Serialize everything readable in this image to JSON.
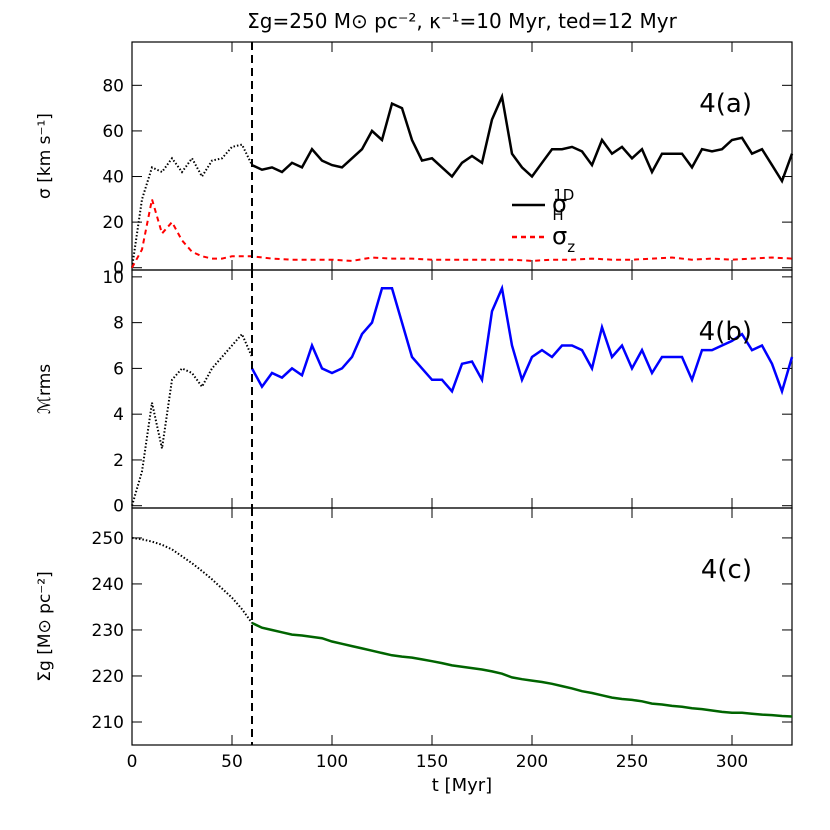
{
  "chart_data": [
    {
      "type": "line",
      "title": "Σg=250 M⊙ pc⁻², κ⁻¹=10 Myr, ted=12 Myr",
      "ylabel": "σ [km s⁻¹]",
      "annotation": "4(a)",
      "xlim": [
        0,
        330
      ],
      "ylim": [
        -1,
        99
      ],
      "yticks": [
        0,
        20,
        40,
        60,
        80
      ],
      "vline": 60,
      "series": [
        {
          "color": "#000000",
          "style": "dotted",
          "x": [
            0,
            5,
            10,
            15,
            20,
            25,
            30,
            35,
            40,
            45,
            50,
            55,
            60
          ],
          "values": [
            0,
            30,
            44,
            42,
            48,
            42,
            48,
            40,
            47,
            48,
            53,
            54,
            45
          ]
        },
        {
          "name": "σ",
          "name_sub": "H",
          "name_sup": "1D",
          "color": "#000000",
          "style": "solid",
          "x": [
            60,
            65,
            70,
            75,
            80,
            85,
            90,
            95,
            100,
            105,
            110,
            115,
            120,
            125,
            130,
            135,
            140,
            145,
            150,
            155,
            160,
            165,
            170,
            175,
            180,
            185,
            190,
            195,
            200,
            205,
            210,
            215,
            220,
            225,
            230,
            235,
            240,
            245,
            250,
            255,
            260,
            265,
            270,
            275,
            280,
            285,
            290,
            295,
            300,
            305,
            310,
            315,
            320,
            325,
            330
          ],
          "values": [
            45,
            43,
            44,
            42,
            46,
            44,
            52,
            47,
            45,
            44,
            48,
            52,
            60,
            56,
            72,
            70,
            56,
            47,
            48,
            44,
            40,
            46,
            49,
            46,
            65,
            75,
            50,
            44,
            40,
            46,
            52,
            52,
            53,
            51,
            45,
            56,
            50,
            53,
            48,
            52,
            42,
            50,
            50,
            50,
            44,
            52,
            51,
            52,
            56,
            57,
            50,
            52,
            45,
            38,
            50
          ]
        },
        {
          "name": "σ",
          "name_sub": "z",
          "color": "#ff0000",
          "style": "dashed",
          "x": [
            0,
            5,
            10,
            15,
            20,
            25,
            30,
            35,
            40,
            45,
            50,
            55,
            60,
            70,
            80,
            90,
            100,
            110,
            120,
            130,
            140,
            150,
            160,
            170,
            180,
            190,
            200,
            210,
            220,
            230,
            240,
            250,
            260,
            270,
            280,
            290,
            300,
            310,
            320,
            330
          ],
          "values": [
            0,
            8,
            30,
            15,
            20,
            12,
            7,
            5,
            4,
            4,
            5,
            5,
            5,
            4,
            3.5,
            3.5,
            3.5,
            3,
            4.5,
            4,
            4,
            3.5,
            3.5,
            3.5,
            3.5,
            3.5,
            3,
            3.5,
            3.5,
            4,
            3.5,
            3.5,
            4,
            4.5,
            3.5,
            4,
            3.5,
            4,
            4.5,
            4
          ]
        }
      ]
    },
    {
      "type": "line",
      "ylabel": "ℳrms",
      "annotation": "4(b)",
      "xlim": [
        0,
        330
      ],
      "ylim": [
        -0.1,
        10.3
      ],
      "yticks": [
        0,
        2,
        4,
        6,
        8,
        10
      ],
      "vline": 60,
      "series": [
        {
          "color": "#000000",
          "style": "dotted",
          "x": [
            0,
            5,
            10,
            15,
            20,
            25,
            30,
            35,
            40,
            45,
            50,
            55,
            60
          ],
          "values": [
            0,
            1.5,
            4.5,
            2.5,
            5.5,
            6,
            5.8,
            5.2,
            6,
            6.5,
            7,
            7.5,
            6.5
          ]
        },
        {
          "color": "#0000ff",
          "style": "solid",
          "x": [
            60,
            65,
            70,
            75,
            80,
            85,
            90,
            95,
            100,
            105,
            110,
            115,
            120,
            125,
            130,
            135,
            140,
            145,
            150,
            155,
            160,
            165,
            170,
            175,
            180,
            185,
            190,
            195,
            200,
            205,
            210,
            215,
            220,
            225,
            230,
            235,
            240,
            245,
            250,
            255,
            260,
            265,
            270,
            275,
            280,
            285,
            290,
            295,
            300,
            305,
            310,
            315,
            320,
            325,
            330
          ],
          "values": [
            6,
            5.2,
            5.8,
            5.6,
            6,
            5.7,
            7,
            6,
            5.8,
            6,
            6.5,
            7.5,
            8,
            9.5,
            9.5,
            8,
            6.5,
            6,
            5.5,
            5.5,
            5,
            6.2,
            6.3,
            5.5,
            8.5,
            9.5,
            7,
            5.5,
            6.5,
            6.8,
            6.5,
            7,
            7,
            6.8,
            6,
            7.8,
            6.5,
            7,
            6,
            6.8,
            5.8,
            6.5,
            6.5,
            6.5,
            5.5,
            6.8,
            6.8,
            7,
            7.2,
            7.5,
            6.8,
            7,
            6.2,
            5,
            6.5
          ]
        }
      ]
    },
    {
      "type": "line",
      "ylabel": "Σg [M⊙ pc⁻²]",
      "xlabel": "t [Myr]",
      "annotation": "4(c)",
      "xlim": [
        0,
        330
      ],
      "xticks": [
        0,
        50,
        100,
        150,
        200,
        250,
        300
      ],
      "ylim": [
        205,
        256.5
      ],
      "yticks": [
        210,
        220,
        230,
        240,
        250
      ],
      "vline": 60,
      "series": [
        {
          "color": "#000000",
          "style": "dotted",
          "x": [
            0,
            5,
            10,
            15,
            20,
            25,
            30,
            35,
            40,
            45,
            50,
            55,
            60
          ],
          "values": [
            250,
            249.7,
            249.2,
            248.5,
            247.5,
            246,
            244.5,
            242.8,
            241,
            239,
            237,
            234.5,
            231.5
          ]
        },
        {
          "color": "#006400",
          "style": "solid",
          "x": [
            60,
            65,
            70,
            75,
            80,
            85,
            90,
            95,
            100,
            105,
            110,
            115,
            120,
            125,
            130,
            135,
            140,
            145,
            150,
            155,
            160,
            165,
            170,
            175,
            180,
            185,
            190,
            195,
            200,
            205,
            210,
            215,
            220,
            225,
            230,
            235,
            240,
            245,
            250,
            255,
            260,
            265,
            270,
            275,
            280,
            285,
            290,
            295,
            300,
            305,
            310,
            315,
            320,
            325,
            330
          ],
          "values": [
            231.5,
            230.5,
            230,
            229.5,
            229,
            228.8,
            228.5,
            228.2,
            227.5,
            227,
            226.5,
            226,
            225.5,
            225,
            224.5,
            224.2,
            224,
            223.6,
            223.2,
            222.8,
            222.3,
            222,
            221.7,
            221.4,
            221,
            220.5,
            219.7,
            219.3,
            219,
            218.7,
            218.3,
            217.8,
            217.3,
            216.7,
            216.3,
            215.8,
            215.3,
            215,
            214.8,
            214.5,
            214,
            213.8,
            213.5,
            213.3,
            213,
            212.8,
            212.5,
            212.2,
            212,
            212,
            211.8,
            211.6,
            211.5,
            211.3,
            211.2
          ]
        }
      ]
    }
  ]
}
